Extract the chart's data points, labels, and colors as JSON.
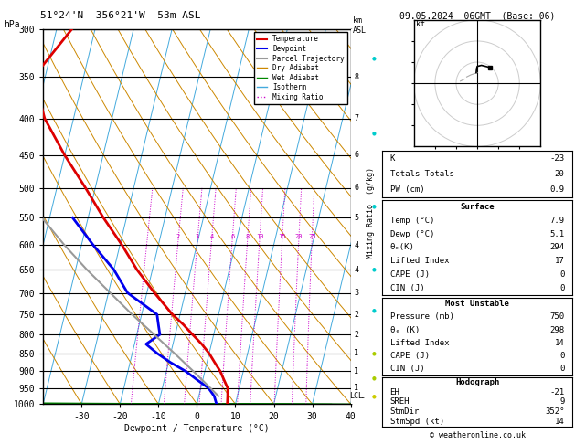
{
  "title_left": "51°24'N  356°21'W  53m ASL",
  "title_right": "09.05.2024  06GMT  (Base: 06)",
  "label_hpa": "hPa",
  "xlabel": "Dewpoint / Temperature (°C)",
  "ylabel_mixing": "Mixing Ratio  (g/kg)",
  "pressure_levels": [
    300,
    350,
    400,
    450,
    500,
    550,
    600,
    650,
    700,
    750,
    800,
    850,
    900,
    950,
    1000
  ],
  "pressure_major": [
    300,
    350,
    400,
    450,
    500,
    550,
    600,
    650,
    700,
    750,
    800,
    850,
    900,
    950,
    1000
  ],
  "temp_range": [
    -40,
    40
  ],
  "temp_ticks": [
    -30,
    -20,
    -10,
    0,
    10,
    20,
    30,
    40
  ],
  "km_ticks": [
    [
      350,
      8
    ],
    [
      400,
      7
    ],
    [
      450,
      6
    ],
    [
      500,
      6
    ],
    [
      550,
      5
    ],
    [
      600,
      4
    ],
    [
      650,
      4
    ],
    [
      700,
      3
    ],
    [
      750,
      2
    ],
    [
      800,
      2
    ],
    [
      850,
      1
    ],
    [
      900,
      1
    ],
    [
      950,
      1
    ],
    [
      975,
      "LCL"
    ]
  ],
  "mixing_ratio_values": [
    1,
    2,
    3,
    4,
    6,
    8,
    10,
    15,
    20,
    25
  ],
  "mixing_ratio_label_values": [
    2,
    3,
    4,
    6,
    8,
    10,
    15,
    20,
    25
  ],
  "temperature_profile": {
    "pressure": [
      1000,
      975,
      950,
      925,
      900,
      875,
      850,
      825,
      800,
      775,
      750,
      700,
      650,
      600,
      550,
      500,
      450,
      400,
      350,
      300
    ],
    "temp": [
      7.9,
      7.5,
      7.0,
      5.5,
      4.0,
      2.0,
      0.0,
      -2.5,
      -5.5,
      -8.5,
      -12.0,
      -18.0,
      -24.0,
      -29.5,
      -36.0,
      -42.5,
      -50.0,
      -57.5,
      -63.0,
      -56.0
    ]
  },
  "dewpoint_profile": {
    "pressure": [
      1000,
      975,
      950,
      925,
      900,
      875,
      850,
      825,
      800,
      775,
      750,
      700,
      650,
      600,
      550
    ],
    "temp": [
      5.1,
      4.0,
      2.0,
      -1.5,
      -5.0,
      -9.5,
      -13.5,
      -17.0,
      -14.0,
      -15.0,
      -16.0,
      -25.0,
      -30.0,
      -37.0,
      -44.0
    ]
  },
  "parcel_trajectory": {
    "pressure": [
      975,
      950,
      900,
      850,
      800,
      750,
      700,
      650,
      600,
      550
    ],
    "temp": [
      5.1,
      2.5,
      -3.0,
      -9.0,
      -15.5,
      -22.5,
      -29.5,
      -37.0,
      -44.5,
      -52.0
    ]
  },
  "lcl_pressure": 975,
  "skew_factor": 45,
  "temp_color": "#dd0000",
  "dewp_color": "#0000ee",
  "parcel_color": "#999999",
  "dry_adiabat_color": "#cc8800",
  "wet_adiabat_color": "#008800",
  "isotherm_color": "#44aadd",
  "mixing_ratio_color": "#cc00cc",
  "k_index": -23,
  "totals_totals": 20,
  "pw_cm": 0.9,
  "surf_temp": 7.9,
  "surf_dewp": 5.1,
  "surf_theta_e": 294,
  "surf_lifted_index": 17,
  "surf_cape": 0,
  "surf_cin": 0,
  "mu_pressure": 750,
  "mu_theta_e": 298,
  "mu_lifted_index": 14,
  "mu_cape": 0,
  "mu_cin": 0,
  "hodo_eh": -21,
  "hodo_sreh": 9,
  "hodo_stmdir": 352,
  "hodo_stmspd": 14,
  "copyright": "© weatheronline.co.uk"
}
